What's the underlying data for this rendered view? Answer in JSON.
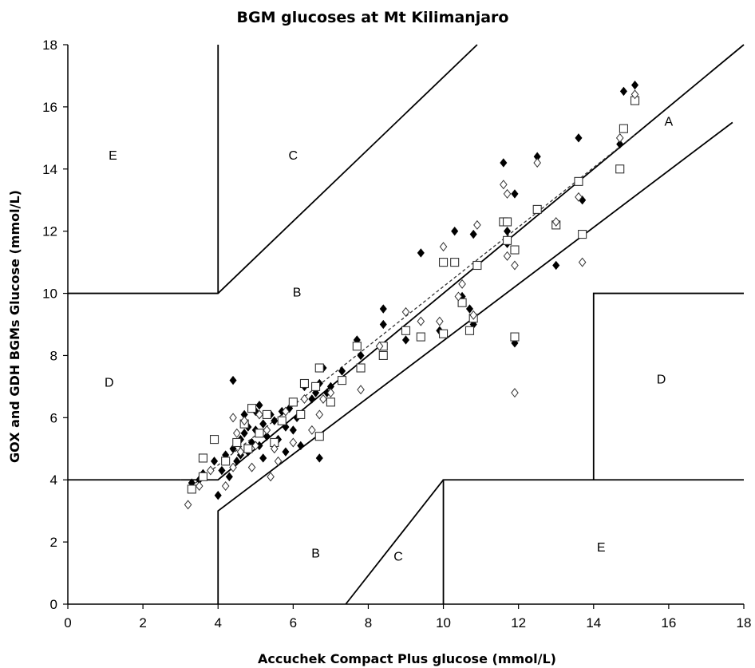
{
  "chart_data": {
    "type": "scatter",
    "title": "BGM glucoses at Mt Kilimanjaro",
    "xlabel": "Accuchek Compact Plus glucose (mmol/L)",
    "ylabel": "GOX and GDH BGMs Glucose (mmol/L)",
    "xlim": [
      0,
      18
    ],
    "ylim": [
      0,
      18
    ],
    "xticks": [
      0,
      2,
      4,
      6,
      8,
      10,
      12,
      14,
      16,
      18
    ],
    "yticks": [
      0,
      2,
      4,
      6,
      8,
      10,
      12,
      14,
      16,
      18
    ],
    "grid": false,
    "legend": "none",
    "colors": {
      "axis": "#000000",
      "filled_marker": "#000000",
      "open_marker_fill": "#ffffff",
      "open_marker_stroke": "#333333",
      "trend": "#333333"
    },
    "zone_boundaries": [
      [
        [
          4,
          0
        ],
        [
          4,
          3
        ],
        [
          17.7,
          15.5
        ]
      ],
      [
        [
          3,
          4
        ],
        [
          4,
          4
        ],
        [
          18,
          18
        ]
      ],
      [
        [
          0,
          4
        ],
        [
          3,
          4
        ]
      ],
      [
        [
          0,
          10
        ],
        [
          4,
          10
        ],
        [
          10.9,
          18
        ]
      ],
      [
        [
          4,
          10
        ],
        [
          4,
          18
        ]
      ],
      [
        [
          7.4,
          0
        ],
        [
          10,
          4
        ],
        [
          10,
          4
        ]
      ],
      [
        [
          10,
          0
        ],
        [
          10,
          4
        ],
        [
          18,
          4
        ]
      ],
      [
        [
          14,
          4
        ],
        [
          14,
          10
        ],
        [
          18,
          10
        ]
      ]
    ],
    "zone_labels": [
      {
        "text": "A",
        "x": 16.0,
        "y": 15.4
      },
      {
        "text": "B",
        "x": 6.1,
        "y": 9.9
      },
      {
        "text": "B",
        "x": 6.6,
        "y": 1.5
      },
      {
        "text": "C",
        "x": 6.0,
        "y": 14.3
      },
      {
        "text": "C",
        "x": 8.8,
        "y": 1.4
      },
      {
        "text": "D",
        "x": 1.1,
        "y": 7.0
      },
      {
        "text": "D",
        "x": 15.8,
        "y": 7.1
      },
      {
        "text": "E",
        "x": 1.2,
        "y": 14.3
      },
      {
        "text": "E",
        "x": 14.2,
        "y": 1.7
      }
    ],
    "trendline": {
      "x": [
        3.4,
        15.1
      ],
      "y": [
        3.9,
        15.1
      ],
      "style": "dashed"
    },
    "series": [
      {
        "marker": "filled-diamond",
        "points": [
          [
            3.3,
            3.9
          ],
          [
            3.5,
            4.0
          ],
          [
            3.6,
            4.2
          ],
          [
            3.9,
            4.6
          ],
          [
            4.0,
            3.5
          ],
          [
            4.1,
            4.3
          ],
          [
            4.2,
            4.8
          ],
          [
            4.3,
            4.1
          ],
          [
            4.4,
            5.0
          ],
          [
            4.5,
            4.6
          ],
          [
            4.6,
            5.3
          ],
          [
            4.6,
            4.8
          ],
          [
            4.7,
            5.5
          ],
          [
            4.7,
            6.1
          ],
          [
            4.8,
            4.9
          ],
          [
            4.8,
            5.7
          ],
          [
            4.9,
            5.2
          ],
          [
            4.9,
            4.4
          ],
          [
            5.0,
            6.2
          ],
          [
            5.0,
            5.6
          ],
          [
            5.1,
            5.1
          ],
          [
            5.1,
            6.4
          ],
          [
            5.2,
            4.7
          ],
          [
            5.2,
            5.8
          ],
          [
            5.3,
            5.4
          ],
          [
            5.4,
            6.1
          ],
          [
            5.5,
            5.0
          ],
          [
            5.5,
            5.9
          ],
          [
            5.6,
            5.3
          ],
          [
            5.7,
            6.2
          ],
          [
            5.8,
            5.7
          ],
          [
            5.8,
            4.9
          ],
          [
            5.9,
            6.3
          ],
          [
            6.0,
            5.6
          ],
          [
            6.1,
            6.0
          ],
          [
            6.2,
            5.1
          ],
          [
            6.3,
            7.0
          ],
          [
            6.5,
            6.6
          ],
          [
            6.6,
            6.8
          ],
          [
            6.7,
            7.1
          ],
          [
            6.8,
            7.6
          ],
          [
            6.9,
            6.8
          ],
          [
            7.0,
            7.0
          ],
          [
            6.7,
            4.7
          ],
          [
            4.4,
            7.2
          ],
          [
            7.3,
            7.5
          ],
          [
            7.7,
            8.5
          ],
          [
            7.8,
            8.0
          ],
          [
            8.4,
            9.5
          ],
          [
            8.4,
            9.0
          ],
          [
            9.0,
            8.5
          ],
          [
            9.4,
            11.3
          ],
          [
            9.9,
            8.8
          ],
          [
            10.0,
            11.0
          ],
          [
            10.3,
            12.0
          ],
          [
            10.5,
            9.9
          ],
          [
            10.7,
            9.5
          ],
          [
            10.8,
            9.0
          ],
          [
            10.8,
            11.9
          ],
          [
            11.6,
            14.2
          ],
          [
            11.7,
            12.0
          ],
          [
            11.7,
            11.6
          ],
          [
            11.9,
            13.2
          ],
          [
            11.9,
            8.4
          ],
          [
            12.5,
            14.4
          ],
          [
            13.0,
            10.9
          ],
          [
            13.6,
            15.0
          ],
          [
            13.7,
            13.0
          ],
          [
            14.7,
            14.8
          ],
          [
            14.8,
            16.5
          ],
          [
            15.1,
            16.7
          ]
        ]
      },
      {
        "marker": "open-square",
        "points": [
          [
            3.3,
            3.7
          ],
          [
            3.6,
            4.1
          ],
          [
            3.6,
            4.7
          ],
          [
            3.9,
            5.3
          ],
          [
            4.2,
            4.6
          ],
          [
            4.5,
            5.2
          ],
          [
            4.7,
            5.8
          ],
          [
            4.8,
            5.0
          ],
          [
            4.9,
            6.3
          ],
          [
            5.1,
            5.5
          ],
          [
            5.3,
            6.1
          ],
          [
            5.5,
            5.2
          ],
          [
            5.7,
            5.9
          ],
          [
            6.0,
            6.5
          ],
          [
            6.2,
            6.1
          ],
          [
            6.3,
            7.1
          ],
          [
            6.6,
            7.0
          ],
          [
            6.7,
            7.6
          ],
          [
            6.7,
            5.4
          ],
          [
            7.0,
            6.5
          ],
          [
            7.3,
            7.2
          ],
          [
            7.7,
            8.3
          ],
          [
            7.8,
            7.6
          ],
          [
            8.4,
            8.3
          ],
          [
            8.4,
            8.0
          ],
          [
            9.0,
            8.8
          ],
          [
            9.4,
            8.6
          ],
          [
            10.0,
            8.7
          ],
          [
            10.0,
            11.0
          ],
          [
            10.3,
            11.0
          ],
          [
            10.5,
            9.7
          ],
          [
            10.7,
            8.8
          ],
          [
            10.8,
            9.2
          ],
          [
            10.9,
            10.9
          ],
          [
            11.6,
            12.3
          ],
          [
            11.7,
            12.3
          ],
          [
            11.7,
            11.7
          ],
          [
            11.9,
            11.4
          ],
          [
            11.9,
            8.6
          ],
          [
            12.5,
            12.7
          ],
          [
            13.0,
            12.2
          ],
          [
            13.6,
            13.6
          ],
          [
            13.7,
            11.9
          ],
          [
            14.7,
            14.0
          ],
          [
            14.8,
            15.3
          ],
          [
            15.1,
            16.2
          ]
        ]
      },
      {
        "marker": "open-diamond",
        "points": [
          [
            3.2,
            3.2
          ],
          [
            3.5,
            3.8
          ],
          [
            3.8,
            4.3
          ],
          [
            4.2,
            3.8
          ],
          [
            4.4,
            4.4
          ],
          [
            4.4,
            6.0
          ],
          [
            4.5,
            5.5
          ],
          [
            4.6,
            4.9
          ],
          [
            4.7,
            5.9
          ],
          [
            4.9,
            4.4
          ],
          [
            5.0,
            5.1
          ],
          [
            5.1,
            6.1
          ],
          [
            5.3,
            5.6
          ],
          [
            5.4,
            4.1
          ],
          [
            5.5,
            5.0
          ],
          [
            5.6,
            4.6
          ],
          [
            5.8,
            6.2
          ],
          [
            6.0,
            5.2
          ],
          [
            6.3,
            6.6
          ],
          [
            6.5,
            5.6
          ],
          [
            6.7,
            6.1
          ],
          [
            6.8,
            6.6
          ],
          [
            7.0,
            6.8
          ],
          [
            7.8,
            6.9
          ],
          [
            8.3,
            8.3
          ],
          [
            9.0,
            9.4
          ],
          [
            9.4,
            9.1
          ],
          [
            9.9,
            9.1
          ],
          [
            10.0,
            11.5
          ],
          [
            10.4,
            9.9
          ],
          [
            10.5,
            10.3
          ],
          [
            10.8,
            9.3
          ],
          [
            10.9,
            12.2
          ],
          [
            11.6,
            13.5
          ],
          [
            11.7,
            11.2
          ],
          [
            11.7,
            13.2
          ],
          [
            11.9,
            10.9
          ],
          [
            11.9,
            6.8
          ],
          [
            12.5,
            14.2
          ],
          [
            13.0,
            12.3
          ],
          [
            13.6,
            13.1
          ],
          [
            13.7,
            11.0
          ],
          [
            14.7,
            15.0
          ],
          [
            15.1,
            16.4
          ]
        ]
      }
    ]
  }
}
